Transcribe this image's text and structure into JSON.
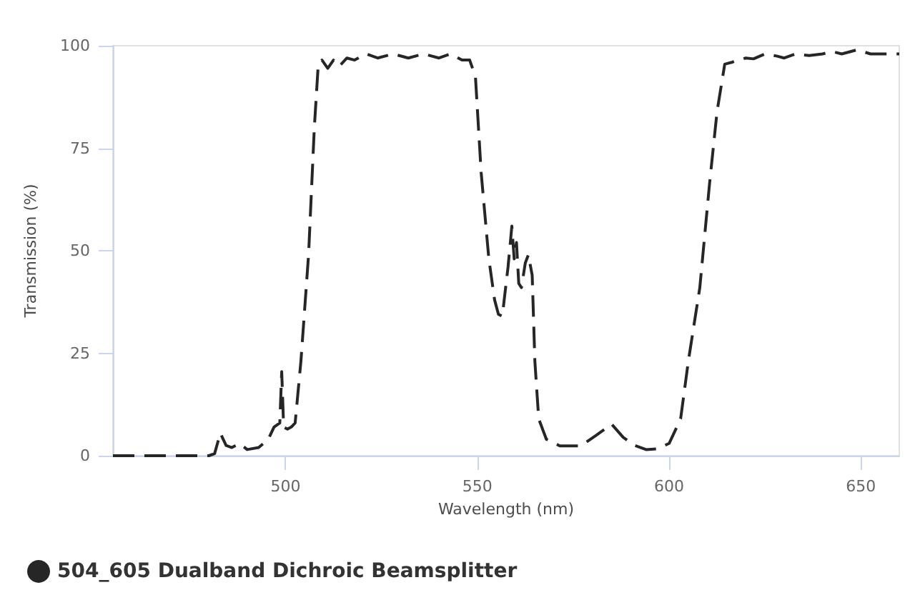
{
  "chart_data": {
    "type": "line",
    "xlabel": "Wavelength (nm)",
    "ylabel": "Transmission (%)",
    "xlim": [
      455,
      660
    ],
    "xticks": [
      500,
      550,
      600,
      650
    ],
    "ylim": [
      0,
      100
    ],
    "yticks": [
      0,
      25,
      50,
      75,
      100
    ],
    "grid": false,
    "legend": "bottom left",
    "marker": "none",
    "line_style": "dashed",
    "series": [
      {
        "name": "504_605 Dualband Dichroic Beamsplitter",
        "color": "#262626",
        "x": [
          455,
          470,
          480,
          481.5,
          483,
          484.5,
          486,
          488,
          490,
          493,
          495.5,
          497,
          498.5,
          499,
          499.5,
          500.5,
          501.5,
          502.5,
          504,
          506,
          507.5,
          508.5,
          509.5,
          511,
          512.5,
          514,
          516,
          518,
          521,
          524,
          528,
          532,
          536,
          540,
          543,
          546,
          548,
          549.5,
          551,
          553,
          554.5,
          555.5,
          556.5,
          558,
          559,
          559.6,
          560.2,
          560.8,
          561.5,
          562.5,
          563.3,
          564.3,
          565,
          566,
          568,
          571.5,
          577,
          581,
          585,
          588,
          591,
          594,
          597,
          600,
          603,
          605,
          608,
          610.5,
          612.5,
          614.5,
          616.5,
          618,
          620,
          622,
          625,
          628,
          630,
          633,
          636.5,
          640,
          642.5,
          645,
          649,
          652.5,
          656,
          660
        ],
        "values": [
          0,
          0,
          0,
          0.5,
          5.5,
          2.5,
          2,
          3,
          1.5,
          2,
          4,
          7,
          8,
          20.5,
          7,
          6.5,
          7,
          8,
          23,
          49,
          80,
          95,
          96.5,
          94.5,
          96.5,
          95,
          97,
          96.5,
          98,
          97,
          98,
          97,
          98,
          97,
          98,
          96.5,
          96.5,
          92.5,
          69,
          48,
          38,
          34.5,
          34,
          46,
          56,
          48,
          52,
          42,
          41,
          47,
          49,
          44,
          23,
          9,
          4,
          2.4,
          2.4,
          5,
          7.7,
          4.5,
          2.5,
          1.5,
          1.7,
          3,
          9,
          23,
          41,
          66,
          84,
          95.5,
          96,
          96.5,
          97,
          96.8,
          98,
          97.5,
          97,
          98,
          97.6,
          98,
          98.6,
          98,
          99,
          98,
          98,
          98
        ]
      }
    ]
  }
}
